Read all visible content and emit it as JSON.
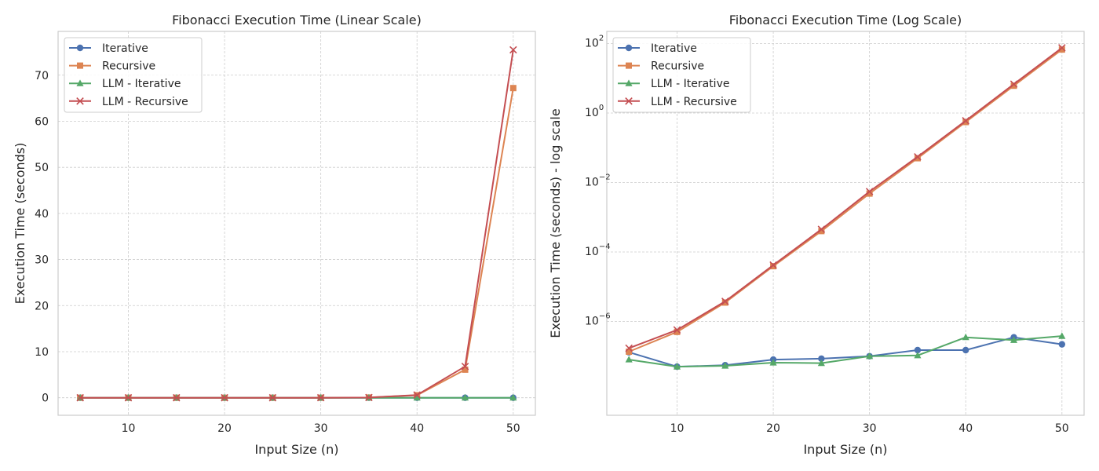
{
  "chart_data": [
    {
      "type": "line",
      "title": "Fibonacci Execution Time (Linear Scale)",
      "xlabel": "Input Size (n)",
      "ylabel": "Execution Time (seconds)",
      "yscale": "linear",
      "xlim": [
        2.7,
        52.3
      ],
      "ylim": [
        -3.8,
        79.5
      ],
      "xticks": [
        10,
        20,
        30,
        40,
        50
      ],
      "xtick_labels": [
        "10",
        "20",
        "30",
        "40",
        "50"
      ],
      "yticks": [
        0,
        10,
        20,
        30,
        40,
        50,
        60,
        70
      ],
      "ytick_labels": [
        "0",
        "10",
        "20",
        "30",
        "40",
        "50",
        "60",
        "70"
      ],
      "grid": true,
      "legend_position": "top-left",
      "x": [
        5,
        10,
        15,
        20,
        25,
        30,
        35,
        40,
        45,
        50
      ],
      "series": [
        {
          "name": "Iterative",
          "color": "#4c72b0",
          "marker": "circle",
          "values": [
            0,
            0,
            0,
            0,
            0,
            0,
            0,
            0,
            0,
            0
          ]
        },
        {
          "name": "Recursive",
          "color": "#dd8452",
          "marker": "square",
          "values": [
            0,
            0,
            0,
            0,
            0.0004,
            0.005,
            0.05,
            0.55,
            6.1,
            67.2
          ]
        },
        {
          "name": "LLM - Iterative",
          "color": "#55a868",
          "marker": "triangle",
          "values": [
            0,
            0,
            0,
            0,
            0,
            0,
            0,
            0,
            0,
            0
          ]
        },
        {
          "name": "LLM - Recursive",
          "color": "#c44e52",
          "marker": "x",
          "values": [
            0,
            0,
            0,
            0,
            0.00045,
            0.0055,
            0.055,
            0.6,
            6.8,
            75.5
          ]
        }
      ]
    },
    {
      "type": "line",
      "title": "Fibonacci Execution Time (Log Scale)",
      "xlabel": "Input Size (n)",
      "ylabel": "Execution Time (seconds) - log scale",
      "yscale": "log",
      "xlim": [
        2.7,
        52.3
      ],
      "ylim_log10": [
        -8.7,
        2.35
      ],
      "xticks": [
        10,
        20,
        30,
        40,
        50
      ],
      "xtick_labels": [
        "10",
        "20",
        "30",
        "40",
        "50"
      ],
      "yticks": [
        1e-06,
        0.0001,
        0.01,
        1,
        100
      ],
      "ytick_labels": [
        {
          "base": "10",
          "exp": "−6"
        },
        {
          "base": "10",
          "exp": "−4"
        },
        {
          "base": "10",
          "exp": "−2"
        },
        {
          "base": "10",
          "exp": "0"
        },
        {
          "base": "10",
          "exp": "2"
        }
      ],
      "grid": true,
      "legend_position": "top-left",
      "x": [
        5,
        10,
        15,
        20,
        25,
        30,
        35,
        40,
        45,
        50
      ],
      "series": [
        {
          "name": "Iterative",
          "color": "#4c72b0",
          "marker": "circle",
          "values": [
            1.3e-07,
            5e-08,
            5.5e-08,
            8e-08,
            8.5e-08,
            1e-07,
            1.5e-07,
            1.5e-07,
            3.5e-07,
            2.2e-07
          ]
        },
        {
          "name": "Recursive",
          "color": "#dd8452",
          "marker": "square",
          "values": [
            1.35e-07,
            5e-07,
            3.5e-06,
            3.9e-05,
            0.0004,
            0.0048,
            0.05,
            0.55,
            6.1,
            67.2
          ]
        },
        {
          "name": "LLM - Iterative",
          "color": "#55a868",
          "marker": "triangle",
          "values": [
            8e-08,
            5e-08,
            5.3e-08,
            6.5e-08,
            6.3e-08,
            1e-07,
            1.05e-07,
            3.5e-07,
            2.9e-07,
            3.8e-07
          ]
        },
        {
          "name": "LLM - Recursive",
          "color": "#c44e52",
          "marker": "x",
          "values": [
            1.7e-07,
            5.7e-07,
            3.8e-06,
            4.2e-05,
            0.00045,
            0.0055,
            0.055,
            0.6,
            6.8,
            75.5
          ]
        }
      ]
    }
  ]
}
